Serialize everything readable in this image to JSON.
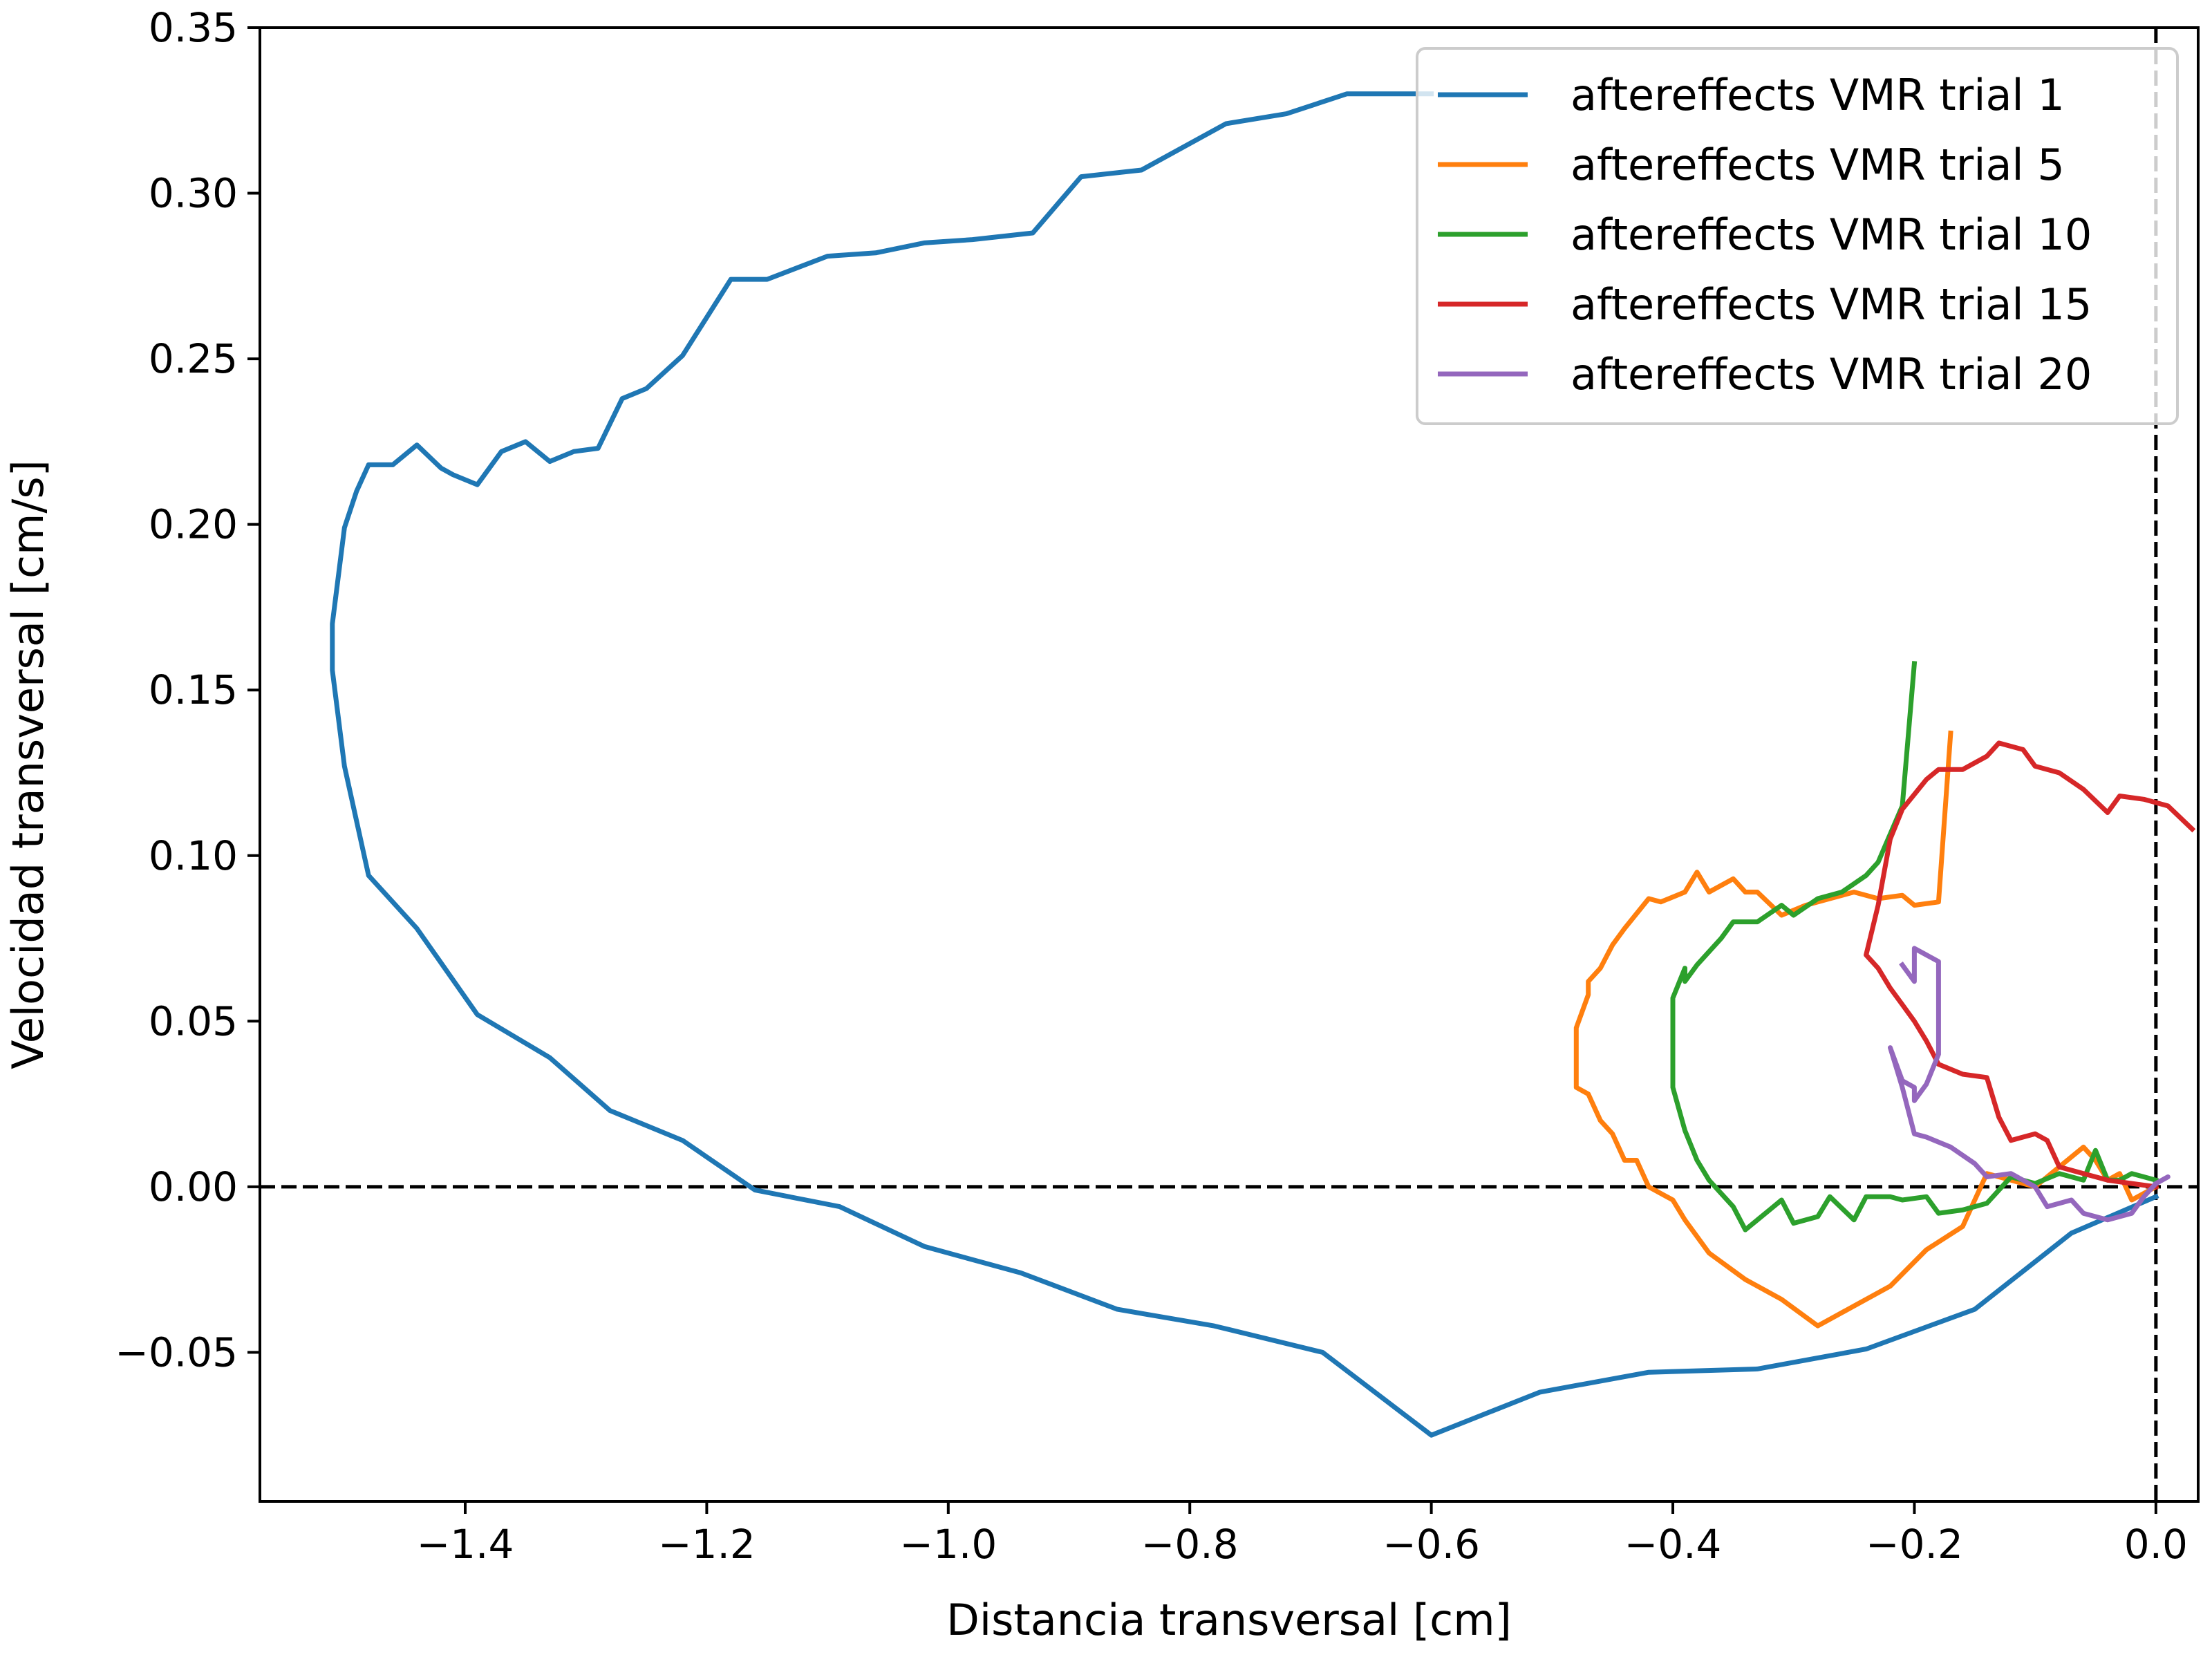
{
  "chart_data": {
    "type": "line",
    "xlabel": "Distancia transversal [cm]",
    "ylabel": "Velocidad transversal [cm/s]",
    "xlim": [
      -1.57,
      0.035
    ],
    "ylim": [
      -0.095,
      0.35
    ],
    "xticks": [
      -1.4,
      -1.2,
      -1.0,
      -0.8,
      -0.6,
      -0.4,
      -0.2,
      0.0
    ],
    "xtick_labels": [
      "−1.4",
      "−1.2",
      "−1.0",
      "−0.8",
      "−0.6",
      "−0.4",
      "−0.2",
      "0.0"
    ],
    "yticks": [
      -0.05,
      0.0,
      0.05,
      0.1,
      0.15,
      0.2,
      0.25,
      0.3,
      0.35
    ],
    "ytick_labels": [
      "−0.05",
      "0.00",
      "0.05",
      "0.10",
      "0.15",
      "0.20",
      "0.25",
      "0.30",
      "0.35"
    ],
    "grid": false,
    "legend_position": "top-right",
    "reference_lines": {
      "horizontal": 0.0,
      "vertical": 0.0,
      "style": "dashed",
      "color": "#000000"
    },
    "series": [
      {
        "name": "aftereffects VMR trial 1",
        "color": "#1f77b4",
        "points": [
          [
            -0.6,
            0.33
          ],
          [
            -0.67,
            0.33
          ],
          [
            -0.72,
            0.324
          ],
          [
            -0.77,
            0.321
          ],
          [
            -0.84,
            0.307
          ],
          [
            -0.89,
            0.305
          ],
          [
            -0.93,
            0.288
          ],
          [
            -0.98,
            0.286
          ],
          [
            -1.02,
            0.285
          ],
          [
            -1.06,
            0.282
          ],
          [
            -1.1,
            0.281
          ],
          [
            -1.15,
            0.274
          ],
          [
            -1.18,
            0.274
          ],
          [
            -1.22,
            0.251
          ],
          [
            -1.25,
            0.241
          ],
          [
            -1.27,
            0.238
          ],
          [
            -1.29,
            0.223
          ],
          [
            -1.31,
            0.222
          ],
          [
            -1.33,
            0.219
          ],
          [
            -1.35,
            0.225
          ],
          [
            -1.37,
            0.222
          ],
          [
            -1.39,
            0.212
          ],
          [
            -1.41,
            0.215
          ],
          [
            -1.42,
            0.217
          ],
          [
            -1.44,
            0.224
          ],
          [
            -1.46,
            0.218
          ],
          [
            -1.48,
            0.218
          ],
          [
            -1.49,
            0.21
          ],
          [
            -1.5,
            0.199
          ],
          [
            -1.51,
            0.17
          ],
          [
            -1.51,
            0.156
          ],
          [
            -1.5,
            0.127
          ],
          [
            -1.48,
            0.094
          ],
          [
            -1.44,
            0.078
          ],
          [
            -1.39,
            0.052
          ],
          [
            -1.33,
            0.039
          ],
          [
            -1.28,
            0.023
          ],
          [
            -1.22,
            0.014
          ],
          [
            -1.16,
            -0.001
          ],
          [
            -1.09,
            -0.006
          ],
          [
            -1.02,
            -0.018
          ],
          [
            -0.94,
            -0.026
          ],
          [
            -0.86,
            -0.037
          ],
          [
            -0.78,
            -0.042
          ],
          [
            -0.69,
            -0.05
          ],
          [
            -0.6,
            -0.075
          ],
          [
            -0.51,
            -0.062
          ],
          [
            -0.42,
            -0.056
          ],
          [
            -0.33,
            -0.055
          ],
          [
            -0.24,
            -0.049
          ],
          [
            -0.15,
            -0.037
          ],
          [
            -0.07,
            -0.014
          ],
          [
            0.0,
            -0.003
          ]
        ]
      },
      {
        "name": "aftereffects VMR trial 5",
        "color": "#ff7f0e",
        "points": [
          [
            -0.17,
            0.137
          ],
          [
            -0.18,
            0.086
          ],
          [
            -0.2,
            0.085
          ],
          [
            -0.21,
            0.088
          ],
          [
            -0.23,
            0.087
          ],
          [
            -0.25,
            0.089
          ],
          [
            -0.27,
            0.087
          ],
          [
            -0.29,
            0.085
          ],
          [
            -0.31,
            0.082
          ],
          [
            -0.33,
            0.089
          ],
          [
            -0.34,
            0.089
          ],
          [
            -0.35,
            0.093
          ],
          [
            -0.37,
            0.089
          ],
          [
            -0.38,
            0.095
          ],
          [
            -0.39,
            0.089
          ],
          [
            -0.41,
            0.086
          ],
          [
            -0.42,
            0.087
          ],
          [
            -0.44,
            0.078
          ],
          [
            -0.45,
            0.073
          ],
          [
            -0.46,
            0.066
          ],
          [
            -0.47,
            0.062
          ],
          [
            -0.47,
            0.058
          ],
          [
            -0.48,
            0.048
          ],
          [
            -0.48,
            0.03
          ],
          [
            -0.47,
            0.028
          ],
          [
            -0.46,
            0.02
          ],
          [
            -0.45,
            0.016
          ],
          [
            -0.44,
            0.008
          ],
          [
            -0.43,
            0.008
          ],
          [
            -0.42,
            0.0
          ],
          [
            -0.4,
            -0.004
          ],
          [
            -0.39,
            -0.01
          ],
          [
            -0.37,
            -0.02
          ],
          [
            -0.34,
            -0.028
          ],
          [
            -0.31,
            -0.034
          ],
          [
            -0.28,
            -0.042
          ],
          [
            -0.25,
            -0.036
          ],
          [
            -0.22,
            -0.03
          ],
          [
            -0.19,
            -0.019
          ],
          [
            -0.16,
            -0.012
          ],
          [
            -0.14,
            0.004
          ],
          [
            -0.12,
            0.002
          ],
          [
            -0.1,
            0.0
          ],
          [
            -0.08,
            0.006
          ],
          [
            -0.06,
            0.012
          ],
          [
            -0.05,
            0.008
          ],
          [
            -0.04,
            0.002
          ],
          [
            -0.03,
            0.004
          ],
          [
            -0.02,
            -0.004
          ],
          [
            -0.01,
            -0.002
          ],
          [
            0.0,
            0.0
          ]
        ]
      },
      {
        "name": "aftereffects VMR trial 10",
        "color": "#2ca02c",
        "points": [
          [
            -0.2,
            0.158
          ],
          [
            -0.21,
            0.115
          ],
          [
            -0.23,
            0.098
          ],
          [
            -0.24,
            0.094
          ],
          [
            -0.26,
            0.089
          ],
          [
            -0.28,
            0.087
          ],
          [
            -0.3,
            0.082
          ],
          [
            -0.31,
            0.085
          ],
          [
            -0.33,
            0.08
          ],
          [
            -0.35,
            0.08
          ],
          [
            -0.36,
            0.075
          ],
          [
            -0.38,
            0.067
          ],
          [
            -0.39,
            0.062
          ],
          [
            -0.39,
            0.066
          ],
          [
            -0.4,
            0.057
          ],
          [
            -0.4,
            0.045
          ],
          [
            -0.4,
            0.03
          ],
          [
            -0.39,
            0.017
          ],
          [
            -0.38,
            0.008
          ],
          [
            -0.37,
            0.002
          ],
          [
            -0.35,
            -0.006
          ],
          [
            -0.34,
            -0.013
          ],
          [
            -0.32,
            -0.007
          ],
          [
            -0.31,
            -0.004
          ],
          [
            -0.3,
            -0.011
          ],
          [
            -0.28,
            -0.009
          ],
          [
            -0.27,
            -0.003
          ],
          [
            -0.25,
            -0.01
          ],
          [
            -0.24,
            -0.003
          ],
          [
            -0.22,
            -0.003
          ],
          [
            -0.21,
            -0.004
          ],
          [
            -0.19,
            -0.003
          ],
          [
            -0.18,
            -0.008
          ],
          [
            -0.16,
            -0.007
          ],
          [
            -0.14,
            -0.005
          ],
          [
            -0.12,
            0.003
          ],
          [
            -0.1,
            0.001
          ],
          [
            -0.08,
            0.004
          ],
          [
            -0.06,
            0.002
          ],
          [
            -0.05,
            0.011
          ],
          [
            -0.04,
            0.002
          ],
          [
            -0.03,
            0.002
          ],
          [
            -0.02,
            0.004
          ],
          [
            -0.01,
            0.003
          ],
          [
            0.0,
            0.002
          ]
        ]
      },
      {
        "name": "aftereffects VMR trial 15",
        "color": "#d62728",
        "points": [
          [
            0.03,
            0.108
          ],
          [
            0.01,
            0.115
          ],
          [
            -0.01,
            0.117
          ],
          [
            -0.03,
            0.118
          ],
          [
            -0.04,
            0.113
          ],
          [
            -0.06,
            0.12
          ],
          [
            -0.08,
            0.125
          ],
          [
            -0.1,
            0.127
          ],
          [
            -0.11,
            0.132
          ],
          [
            -0.13,
            0.134
          ],
          [
            -0.14,
            0.13
          ],
          [
            -0.16,
            0.126
          ],
          [
            -0.18,
            0.126
          ],
          [
            -0.19,
            0.123
          ],
          [
            -0.21,
            0.114
          ],
          [
            -0.22,
            0.105
          ],
          [
            -0.23,
            0.085
          ],
          [
            -0.24,
            0.07
          ],
          [
            -0.23,
            0.066
          ],
          [
            -0.22,
            0.06
          ],
          [
            -0.21,
            0.055
          ],
          [
            -0.2,
            0.05
          ],
          [
            -0.19,
            0.044
          ],
          [
            -0.18,
            0.037
          ],
          [
            -0.16,
            0.034
          ],
          [
            -0.14,
            0.033
          ],
          [
            -0.13,
            0.021
          ],
          [
            -0.12,
            0.014
          ],
          [
            -0.1,
            0.016
          ],
          [
            -0.09,
            0.014
          ],
          [
            -0.08,
            0.006
          ],
          [
            -0.06,
            0.004
          ],
          [
            -0.04,
            0.002
          ],
          [
            -0.02,
            0.001
          ],
          [
            0.0,
            0.0
          ]
        ]
      },
      {
        "name": "aftereffects VMR trial 20",
        "color": "#9467bd",
        "points": [
          [
            -0.21,
            0.067
          ],
          [
            -0.2,
            0.062
          ],
          [
            -0.2,
            0.072
          ],
          [
            -0.19,
            0.07
          ],
          [
            -0.18,
            0.068
          ],
          [
            -0.18,
            0.056
          ],
          [
            -0.18,
            0.05
          ],
          [
            -0.18,
            0.04
          ],
          [
            -0.19,
            0.031
          ],
          [
            -0.2,
            0.026
          ],
          [
            -0.2,
            0.03
          ],
          [
            -0.21,
            0.032
          ],
          [
            -0.22,
            0.042
          ],
          [
            -0.21,
            0.03
          ],
          [
            -0.2,
            0.016
          ],
          [
            -0.19,
            0.015
          ],
          [
            -0.17,
            0.012
          ],
          [
            -0.15,
            0.007
          ],
          [
            -0.14,
            0.003
          ],
          [
            -0.12,
            0.004
          ],
          [
            -0.1,
            0.0
          ],
          [
            -0.09,
            -0.006
          ],
          [
            -0.07,
            -0.004
          ],
          [
            -0.06,
            -0.008
          ],
          [
            -0.04,
            -0.01
          ],
          [
            -0.02,
            -0.008
          ],
          [
            -0.01,
            -0.003
          ],
          [
            0.0,
            0.001
          ],
          [
            0.01,
            0.003
          ],
          [
            0.0,
            0.001
          ]
        ]
      }
    ]
  }
}
